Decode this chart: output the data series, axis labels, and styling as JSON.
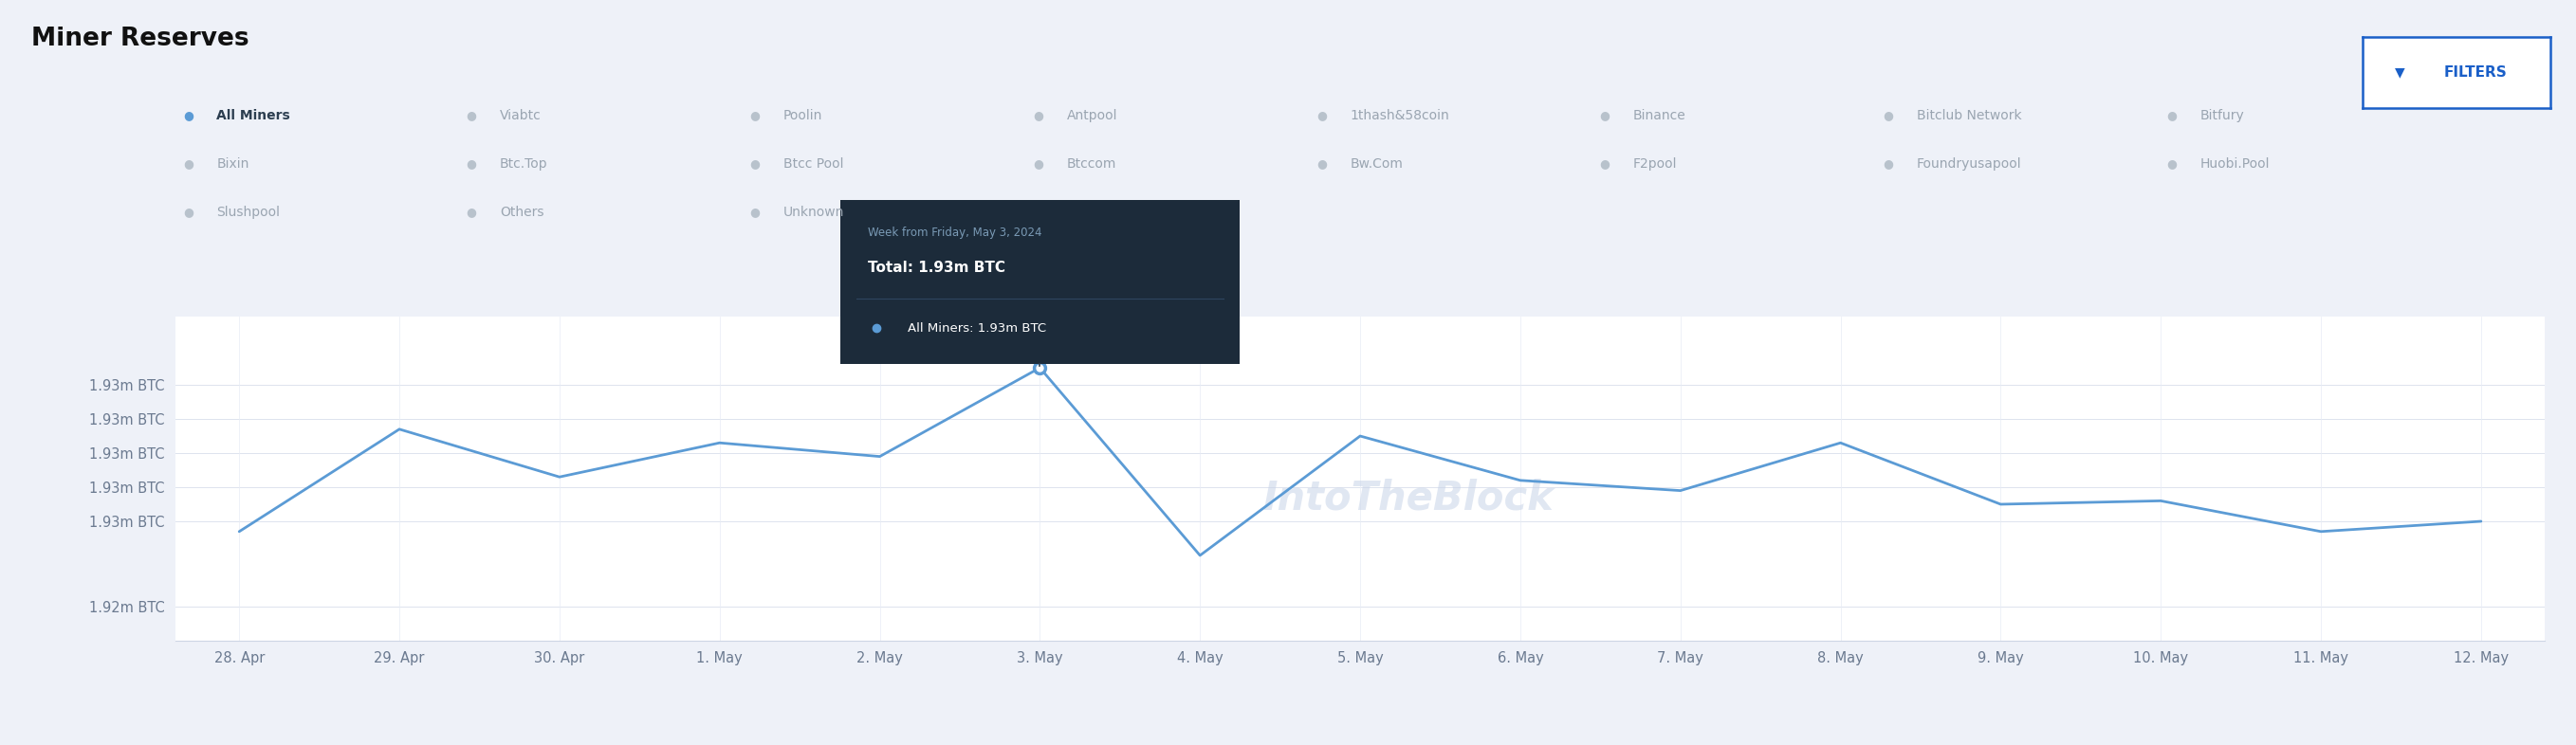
{
  "title": "Miner Reserves",
  "background_color": "#eef1f8",
  "chart_bg": "#ffffff",
  "x_labels": [
    "28. Apr",
    "29. Apr",
    "30. Apr",
    "1. May",
    "2. May",
    "3. May",
    "4. May",
    "5. May",
    "6. May",
    "7. May",
    "8. May",
    "9. May",
    "10. May",
    "11. May",
    "12. May"
  ],
  "y_labels": [
    "1.92m BTC",
    "1.93m BTC",
    "1.93m BTC",
    "1.93m BTC",
    "1.93m BTC",
    "1.93m BTC"
  ],
  "y_values": [
    1.92,
    1.9225,
    1.9235,
    1.9245,
    1.9255,
    1.9265
  ],
  "line_data": [
    1.9222,
    1.9252,
    1.9238,
    1.9248,
    1.9244,
    1.927,
    1.9215,
    1.925,
    1.9237,
    1.9234,
    1.9248,
    1.923,
    1.9231,
    1.9222,
    1.9225
  ],
  "line_color": "#5b9bd5",
  "line_width": 2.0,
  "highlight_index": 5,
  "highlight_color": "#5b9bd5",
  "tooltip_bg": "#1c2b3a",
  "tooltip_title": "Week from Friday, May 3, 2024",
  "tooltip_total": "Total: 1.93m BTC",
  "tooltip_item": "All Miners: 1.93m BTC",
  "tooltip_dot_color": "#5b9bd5",
  "legend_cols": [
    [
      "All Miners",
      "Bixin",
      "Slushpool"
    ],
    [
      "Viabtc",
      "Btc.Top",
      "Others"
    ],
    [
      "Poolin",
      "Btcc Pool",
      "Unknown"
    ],
    [
      "Antpool",
      "Btccom",
      ""
    ],
    [
      "1thash&58coin",
      "Bw.Com",
      ""
    ],
    [
      "Binance",
      "F2pool",
      ""
    ],
    [
      "Bitclub Network",
      "Foundryusapool",
      ""
    ],
    [
      "Bitfury",
      "Huobi.Pool",
      ""
    ]
  ],
  "legend_active": [
    "All Miners"
  ],
  "watermark_text": "IntoTheBlock",
  "filters_label": "FILTERS",
  "filters_color": "#1a5fc8",
  "filters_bg": "#ffffff",
  "filters_border": "#1a5fc8"
}
